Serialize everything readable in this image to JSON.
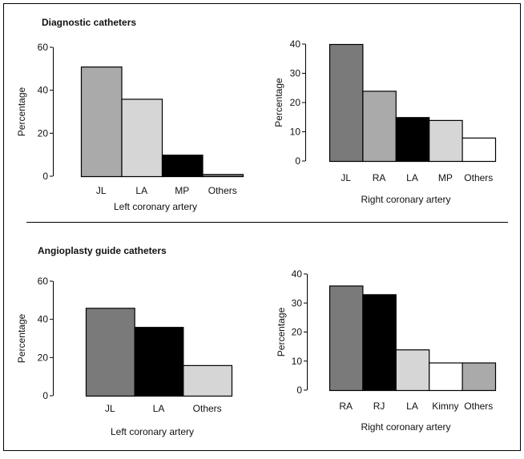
{
  "sections": [
    {
      "title": "Diagnostic catheters"
    },
    {
      "title": "Angioplasty guide catheters"
    }
  ],
  "chart_data": [
    {
      "type": "bar",
      "section": "Diagnostic catheters",
      "xlabel": "Left coronary artery",
      "ylabel": "Percentage",
      "ylim": [
        0,
        60
      ],
      "yticks": [
        0,
        20,
        40,
        60
      ],
      "categories": [
        "JL",
        "LA",
        "MP",
        "Others"
      ],
      "values": [
        51,
        36,
        10,
        1
      ],
      "colors": [
        "#aaaaaa",
        "#d6d6d6",
        "#000000",
        "#7a7a7a"
      ]
    },
    {
      "type": "bar",
      "section": "Diagnostic catheters",
      "xlabel": "Right coronary artery",
      "ylabel": "Percentage",
      "ylim": [
        0,
        40
      ],
      "yticks": [
        0,
        10,
        20,
        30,
        40
      ],
      "categories": [
        "JL",
        "RA",
        "LA",
        "MP",
        "Others"
      ],
      "values": [
        40,
        24,
        15,
        14,
        8
      ],
      "colors": [
        "#7a7a7a",
        "#aaaaaa",
        "#000000",
        "#d6d6d6",
        "#ffffff"
      ]
    },
    {
      "type": "bar",
      "section": "Angioplasty guide catheters",
      "xlabel": "Left coronary artery",
      "ylabel": "Percentage",
      "ylim": [
        0,
        60
      ],
      "yticks": [
        0,
        20,
        40,
        60
      ],
      "categories": [
        "JL",
        "LA",
        "Others"
      ],
      "values": [
        46,
        36,
        16
      ],
      "colors": [
        "#7a7a7a",
        "#000000",
        "#d6d6d6"
      ]
    },
    {
      "type": "bar",
      "section": "Angioplasty guide catheters",
      "xlabel": "Right coronary artery",
      "ylabel": "Percentage",
      "ylim": [
        0,
        40
      ],
      "yticks": [
        0,
        10,
        20,
        30,
        40
      ],
      "categories": [
        "RA",
        "RJ",
        "LA",
        "Kimny",
        "Others"
      ],
      "values": [
        36,
        33,
        14,
        9.5,
        9.5
      ],
      "colors": [
        "#7a7a7a",
        "#000000",
        "#d6d6d6",
        "#ffffff",
        "#aaaaaa"
      ]
    }
  ]
}
